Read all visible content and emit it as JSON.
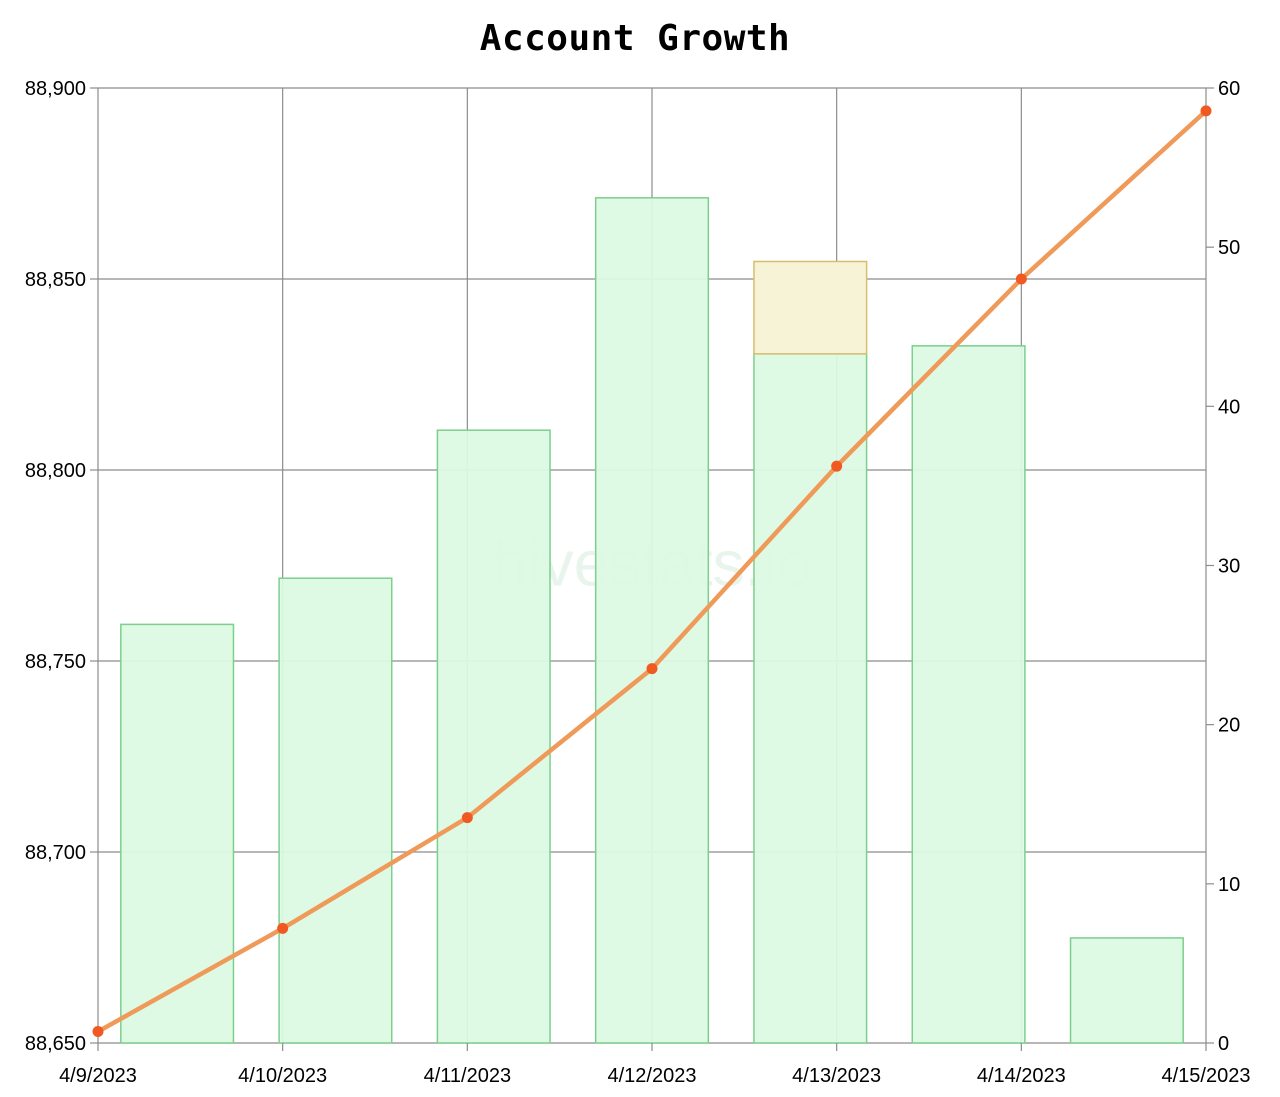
{
  "chart_data": {
    "type": "bar",
    "title": "Account Growth",
    "watermark": "hivestats.io",
    "x": [
      "4/9/2023",
      "4/10/2023",
      "4/11/2023",
      "4/12/2023",
      "4/13/2023",
      "4/14/2023",
      "4/15/2023"
    ],
    "left_axis": {
      "range": [
        88650,
        88900
      ],
      "ticks": [
        "88,650",
        "88,700",
        "88,750",
        "88,800",
        "88,850",
        "88,900"
      ]
    },
    "right_axis": {
      "range": [
        0,
        60
      ],
      "ticks": [
        "0",
        "10",
        "20",
        "30",
        "40",
        "50",
        "60"
      ]
    },
    "grid": true,
    "bars": [
      {
        "value": 26.3,
        "extra": 0
      },
      {
        "value": 29.2,
        "extra": 0
      },
      {
        "value": 38.5,
        "extra": 0
      },
      {
        "value": 53.1,
        "extra": 0
      },
      {
        "value": 43.3,
        "extra": 5.8
      },
      {
        "value": 43.8,
        "extra": 0
      },
      {
        "value": 6.6,
        "extra": 0
      }
    ],
    "line": {
      "axis": "left",
      "values": [
        88653,
        88680,
        88709,
        88748,
        88801,
        88850,
        88894
      ]
    },
    "colors": {
      "bar_fill": "#dcf9e3",
      "bar_stroke": "#7ccf8c",
      "extra_fill": "#f7f3d6",
      "extra_stroke": "#d6be6e",
      "line": "#ef9a58",
      "point": "#f05a22",
      "grid": "#8c8c8c"
    }
  }
}
